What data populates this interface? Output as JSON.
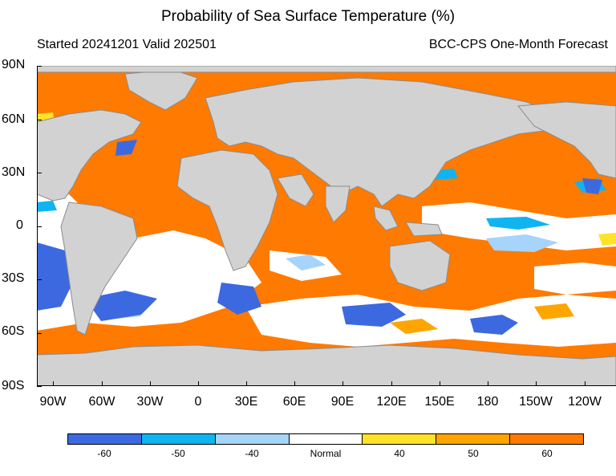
{
  "title": "Probability of Sea Surface Temperature (%)",
  "subtitle_left": "Started 20241201  Valid 202501",
  "subtitle_right": "BCC-CPS One-Month Forecast",
  "y_axis_labels": [
    "90N",
    "60N",
    "30N",
    "0",
    "30S",
    "60S",
    "90S"
  ],
  "x_axis_labels": [
    "90W",
    "60W",
    "30W",
    "0",
    "30E",
    "60E",
    "90E",
    "120E",
    "150E",
    "180",
    "150W",
    "120W"
  ],
  "colorbar": {
    "colors": [
      "#3d69e0",
      "#10b4f0",
      "#a6d4fa",
      "#ffffff",
      "#ffe22a",
      "#ffa500",
      "#ff7a00"
    ],
    "labels": [
      "-60",
      "-50",
      "-40",
      "Normal",
      "40",
      "50",
      "60"
    ]
  },
  "colors": {
    "land": "#d2d2d2",
    "coast": "#8c8c8c",
    "ocean_high": "#ff7a00"
  }
}
